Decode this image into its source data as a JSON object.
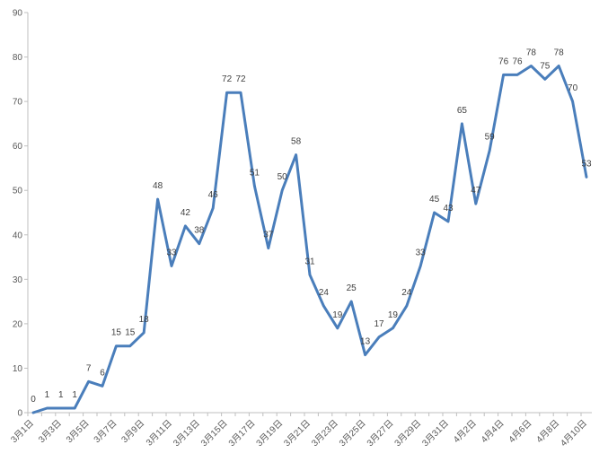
{
  "chart_data": {
    "type": "line",
    "title": "",
    "xlabel": "",
    "ylabel": "",
    "ylim": [
      0,
      90
    ],
    "yticks": [
      0,
      10,
      20,
      30,
      40,
      50,
      60,
      70,
      80,
      90
    ],
    "grid": false,
    "legend": "none",
    "line_color": "#4a7ebb",
    "x_tick_labels": [
      "3月1日",
      "3月3日",
      "3月5日",
      "3月7日",
      "3月9日",
      "3月11日",
      "3月13日",
      "3月15日",
      "3月17日",
      "3月19日",
      "3月21日",
      "3月23日",
      "3月25日",
      "3月27日",
      "3月29日",
      "3月31日",
      "4月2日",
      "4月4日",
      "4月6日",
      "4月8日",
      "4月10日"
    ],
    "categories": [
      "3月1日",
      "3月2日",
      "3月3日",
      "3月4日",
      "3月5日",
      "3月6日",
      "3月7日",
      "3月8日",
      "3月9日",
      "3月10日",
      "3月11日",
      "3月12日",
      "3月13日",
      "3月14日",
      "3月15日",
      "3月16日",
      "3月17日",
      "3月18日",
      "3月19日",
      "3月20日",
      "3月21日",
      "3月22日",
      "3月23日",
      "3月24日",
      "3月25日",
      "3月26日",
      "3月27日",
      "3月28日",
      "3月29日",
      "3月30日",
      "3月31日",
      "4月1日",
      "4月2日",
      "4月3日",
      "4月4日",
      "4月5日",
      "4月6日",
      "4月7日",
      "4月8日",
      "4月9日",
      "4月10日"
    ],
    "values": [
      0,
      1,
      1,
      1,
      7,
      6,
      15,
      15,
      18,
      48,
      33,
      42,
      38,
      46,
      72,
      72,
      51,
      37,
      50,
      58,
      31,
      24,
      19,
      25,
      13,
      17,
      19,
      24,
      33,
      45,
      43,
      65,
      47,
      59,
      76,
      76,
      78,
      75,
      78,
      70,
      53
    ]
  }
}
